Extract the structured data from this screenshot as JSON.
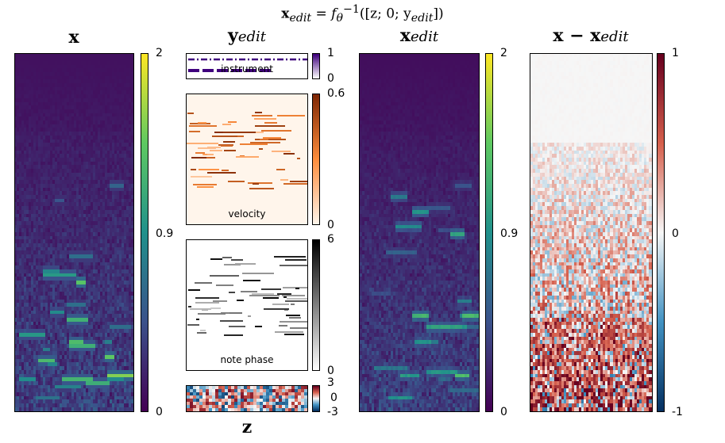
{
  "figure": {
    "equation": "x_edit = f_θ^{-1}([z; 0; y_edit])",
    "equation_parts": {
      "lhs": "x",
      "lhs_sub": "edit",
      "f": "f",
      "f_sub": "θ",
      "f_sup": "−1",
      "args": "([z; 0; y",
      "args_sub": "edit",
      "args_end": "])"
    }
  },
  "panels": {
    "x": {
      "title": "x",
      "cbar_ticks": [
        "2",
        "0.9",
        "0"
      ],
      "colormap": "viridis"
    },
    "y_edit": {
      "title": "y",
      "title_sub": "edit",
      "instrument": {
        "label": "instrument",
        "cbar_ticks": [
          "1",
          "0"
        ],
        "colormap": "purples"
      },
      "velocity": {
        "label": "velocity",
        "cbar_ticks": [
          "0.6",
          "0"
        ],
        "colormap": "oranges"
      },
      "note_phase": {
        "label": "note phase",
        "cbar_ticks": [
          "6",
          "0"
        ],
        "colormap": "greys"
      }
    },
    "z": {
      "title": "z",
      "cbar_ticks": [
        "3",
        "0",
        "-3"
      ],
      "colormap": "rdbu"
    },
    "x_edit": {
      "title": "x",
      "title_sub": "edit",
      "cbar_ticks": [
        "2",
        "0.9",
        "0"
      ],
      "colormap": "viridis"
    },
    "diff": {
      "title": "x − x",
      "title_lhs": "x − x",
      "title_sub": "edit",
      "cbar_ticks": [
        "1",
        "0",
        "-1"
      ],
      "colormap": "rdbu"
    }
  }
}
